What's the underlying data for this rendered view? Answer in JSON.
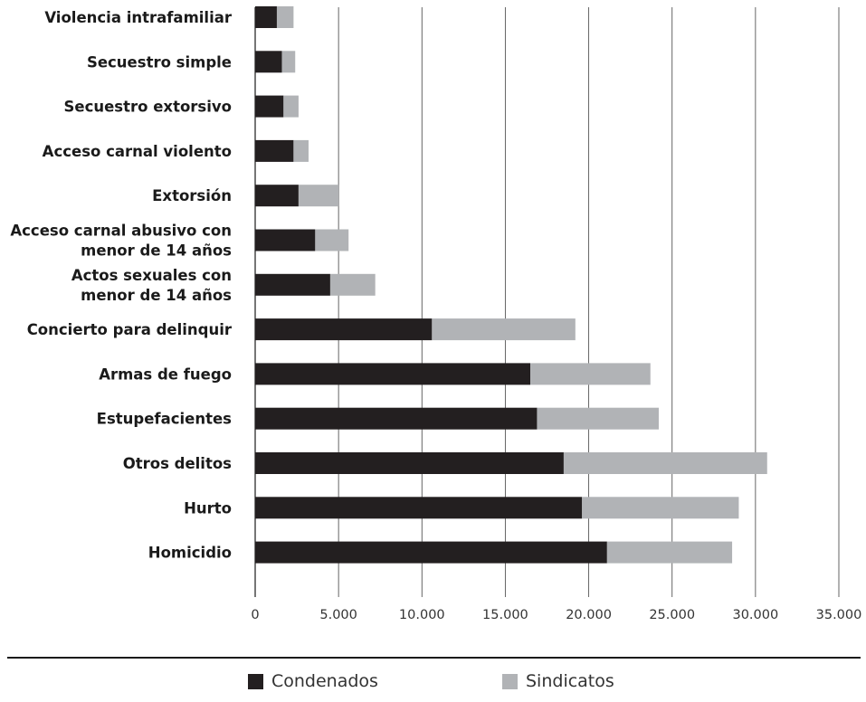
{
  "chart_data": {
    "type": "bar",
    "orientation": "horizontal",
    "stacked": true,
    "categories": [
      "Violencia intrafamiliar",
      "Secuestro simple",
      "Secuestro extorsivo",
      "Acceso carnal violento",
      "Extorsión",
      [
        "Acceso carnal abusivo con",
        "menor de 14 años"
      ],
      [
        "Actos sexuales con",
        "menor de 14 años"
      ],
      "Concierto para delinquir",
      "Armas de fuego",
      "Estupefacientes",
      "Otros delitos",
      "Hurto",
      "Homicidio"
    ],
    "series": [
      {
        "name": "Condenados",
        "color": "#231f20",
        "values": [
          1300,
          1600,
          1700,
          2300,
          2600,
          3600,
          4500,
          10600,
          16500,
          16900,
          18500,
          19600,
          21100
        ]
      },
      {
        "name": "Sindicatos",
        "color": "#b1b3b6",
        "values": [
          1000,
          800,
          900,
          900,
          2400,
          2000,
          2700,
          8600,
          7200,
          7300,
          12200,
          9400,
          7500
        ]
      }
    ],
    "xlim": [
      0,
      35000
    ],
    "xticks": [
      0,
      5000,
      10000,
      15000,
      20000,
      25000,
      30000,
      35000
    ],
    "xtick_labels": [
      "0",
      "5.000",
      "10.000",
      "15.000",
      "20.000",
      "25.000",
      "30.000",
      "35.000"
    ],
    "grid": "vertical",
    "legend_position": "bottom"
  }
}
